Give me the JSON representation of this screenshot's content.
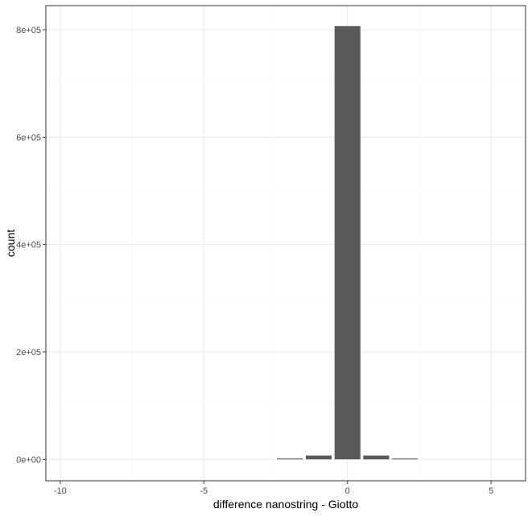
{
  "chart_data": {
    "type": "bar",
    "xlabel": "difference nanostring - Giotto",
    "ylabel": "count",
    "xlim": [
      -10.5,
      6.2
    ],
    "ylim": [
      -40000,
      845000
    ],
    "x_ticks": [
      -10,
      -5,
      0,
      5
    ],
    "x_tick_labels": [
      "-10",
      "-5",
      "0",
      "5"
    ],
    "y_ticks": [
      0,
      200000,
      400000,
      600000,
      800000
    ],
    "y_tick_labels": [
      "0e+00",
      "2e+05",
      "4e+05",
      "6e+05",
      "8e+05"
    ],
    "bar_width": 0.9,
    "x": [
      -2,
      -1,
      0,
      1,
      2
    ],
    "values": [
      1000,
      7000,
      807000,
      7000,
      1000
    ],
    "grid": true,
    "bar_color": "#595959",
    "panel_border_color": "#333333",
    "grid_major_color": "#ebebeb",
    "grid_minor_color": "#f5f5f5"
  }
}
